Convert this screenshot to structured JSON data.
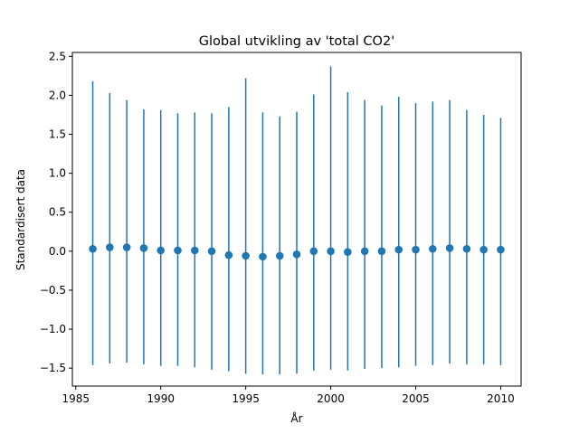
{
  "chart_data": {
    "type": "errorbar-scatter",
    "title": "Global utvikling av 'total CO2'",
    "xlabel": "År",
    "ylabel": "Standardisert data",
    "xlim": [
      1984.8,
      2011.2
    ],
    "ylim": [
      -1.73,
      2.55
    ],
    "xticks": [
      1985,
      1990,
      1995,
      2000,
      2005,
      2010
    ],
    "yticks": [
      -1.5,
      -1.0,
      -0.5,
      0.0,
      0.5,
      1.0,
      1.5,
      2.0,
      2.5
    ],
    "ytick_labels": [
      "−1.5",
      "−1.0",
      "−0.5",
      "0.0",
      "0.5",
      "1.0",
      "1.5",
      "2.0",
      "2.5"
    ],
    "color": "#1f77b4",
    "grid": false,
    "series": [
      {
        "x": [
          1986,
          1987,
          1988,
          1989,
          1990,
          1991,
          1992,
          1993,
          1994,
          1995,
          1996,
          1997,
          1998,
          1999,
          2000,
          2001,
          2002,
          2003,
          2004,
          2005,
          2006,
          2007,
          2008,
          2009,
          2010
        ],
        "y": [
          0.03,
          0.05,
          0.05,
          0.04,
          0.01,
          0.01,
          0.01,
          0.0,
          -0.05,
          -0.06,
          -0.07,
          -0.06,
          -0.04,
          0.0,
          0.0,
          -0.01,
          0.0,
          0.0,
          0.02,
          0.02,
          0.03,
          0.04,
          0.03,
          0.02,
          0.02
        ],
        "y_low": [
          -1.46,
          -1.44,
          -1.43,
          -1.45,
          -1.47,
          -1.47,
          -1.49,
          -1.52,
          -1.54,
          -1.57,
          -1.58,
          -1.58,
          -1.57,
          -1.53,
          -1.52,
          -1.53,
          -1.51,
          -1.5,
          -1.49,
          -1.47,
          -1.46,
          -1.44,
          -1.45,
          -1.45,
          -1.46
        ],
        "y_high": [
          2.18,
          2.03,
          1.94,
          1.82,
          1.81,
          1.77,
          1.78,
          1.77,
          1.85,
          2.22,
          1.78,
          1.73,
          1.79,
          2.01,
          2.37,
          2.04,
          1.94,
          1.87,
          1.98,
          1.9,
          1.92,
          1.94,
          1.81,
          1.75,
          1.71
        ]
      }
    ]
  }
}
